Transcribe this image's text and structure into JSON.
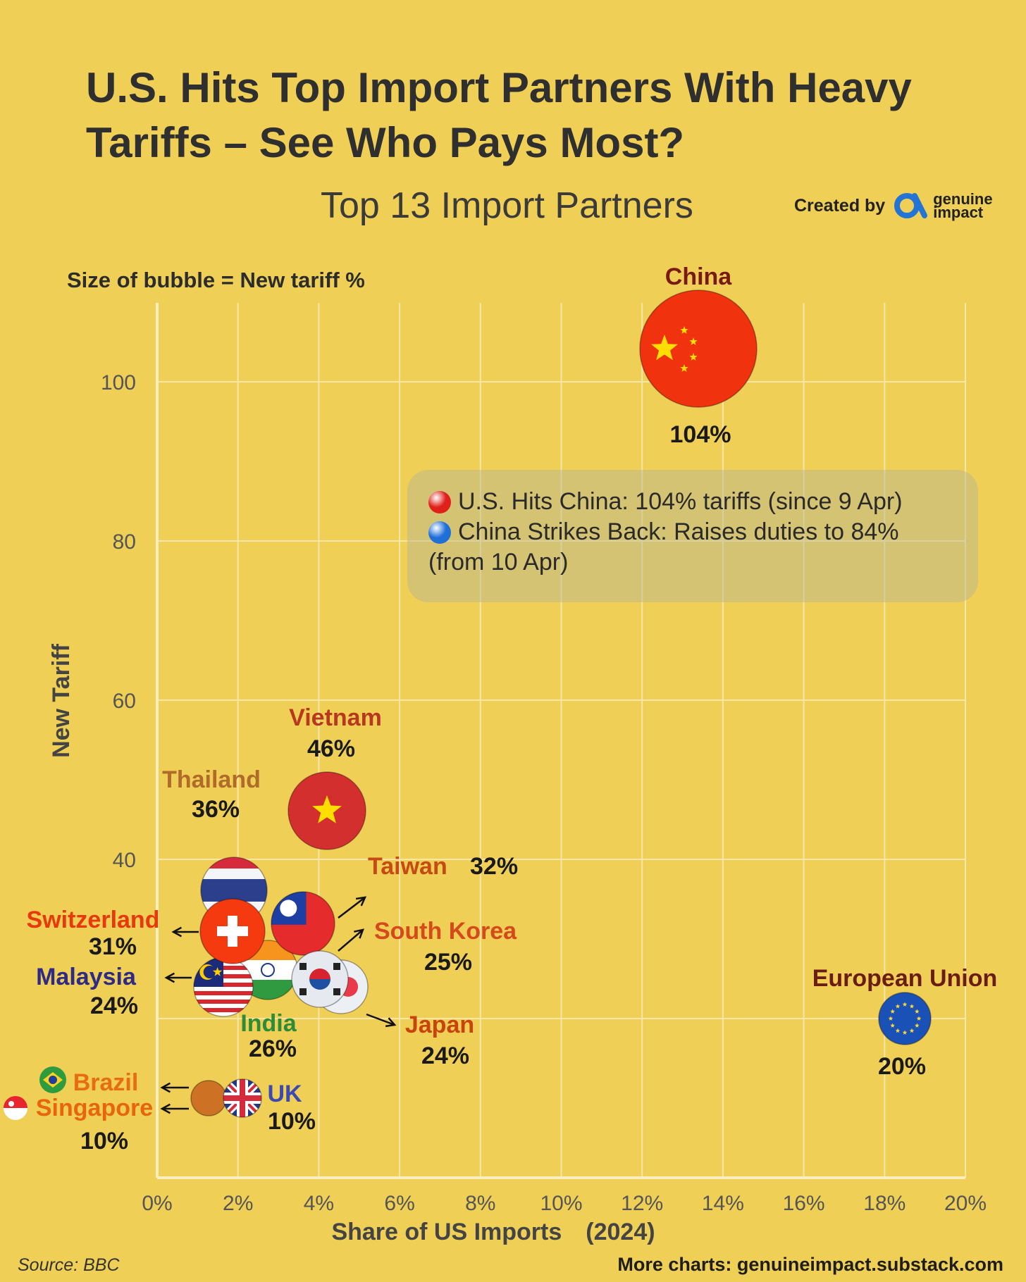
{
  "title": "U.S. Hits Top Import Partners With Heavy Tariffs – See Who Pays Most?",
  "subtitle": "Top 13 Import Partners",
  "created_by": "Created by",
  "brand_line1": "genuine",
  "brand_line2": "impact",
  "bubble_note": "Size of bubble = New tariff %",
  "callout": {
    "line1": "U.S. Hits China: 104% tariffs (since 9 Apr)",
    "line2": "China Strikes Back: Raises duties to 84%",
    "line3": "(from 10 Apr)",
    "dot1_color": "#e0201b",
    "dot2_color": "#1f6fd9"
  },
  "source": "Source: BBC",
  "more_charts": "More charts: genuineimpact.substack.com",
  "colors": {
    "background": "#efcf55",
    "grid": "#f7e7a6"
  },
  "chart_data": {
    "type": "scatter",
    "subtype": "bubble",
    "xlabel": "Share of US Imports　(2024)",
    "ylabel": "New Tariff",
    "xlim": [
      0,
      20
    ],
    "ylim": [
      0,
      110
    ],
    "x_ticks": [
      "0%",
      "2%",
      "4%",
      "6%",
      "8%",
      "10%",
      "12%",
      "14%",
      "16%",
      "18%",
      "20%"
    ],
    "y_ticks": [
      100,
      80,
      60,
      40
    ],
    "grid": true,
    "points": [
      {
        "name": "China",
        "x": 13.4,
        "y": 104,
        "label": "104%",
        "flag": "china",
        "name_color": "#7a1a14"
      },
      {
        "name": "Vietnam",
        "x": 4.2,
        "y": 46,
        "label": "46%",
        "flag": "vietnam",
        "name_color": "#b8371f"
      },
      {
        "name": "Thailand",
        "x": 1.9,
        "y": 36,
        "label": "36%",
        "flag": "thailand",
        "name_color": "#b06a2a"
      },
      {
        "name": "Taiwan",
        "x": 3.6,
        "y": 32,
        "label": "32%",
        "flag": "taiwan",
        "name_color": "#c64a13"
      },
      {
        "name": "Switzerland",
        "x": 1.9,
        "y": 31,
        "label": "31%",
        "flag": "switzerland",
        "name_color": "#e8380e"
      },
      {
        "name": "South Korea",
        "x": 4.0,
        "y": 25,
        "label": "25%",
        "flag": "south-korea",
        "name_color": "#d6491b"
      },
      {
        "name": "Malaysia",
        "x": 1.6,
        "y": 24,
        "label": "24%",
        "flag": "malaysia",
        "name_color": "#2e2a86"
      },
      {
        "name": "India",
        "x": 2.7,
        "y": 26,
        "label": "26%",
        "flag": "india",
        "name_color": "#2e8b37"
      },
      {
        "name": "Japan",
        "x": 4.5,
        "y": 24,
        "label": "24%",
        "flag": "japan",
        "name_color": "#c9430f"
      },
      {
        "name": "European Union",
        "x": 18.5,
        "y": 20,
        "label": "20%",
        "flag": "eu",
        "name_color": "#6b1d14"
      },
      {
        "name": "Brazil",
        "x": 1.2,
        "y": 10,
        "label": "10%",
        "flag": "brazil",
        "name_color": "#e86c10"
      },
      {
        "name": "Singapore",
        "x": 1.2,
        "y": 10,
        "label": "10%",
        "flag": "singapore",
        "name_color": "#e8650f"
      },
      {
        "name": "UK",
        "x": 2.1,
        "y": 10,
        "label": "10%",
        "flag": "uk",
        "name_color": "#3b49b0"
      }
    ]
  }
}
